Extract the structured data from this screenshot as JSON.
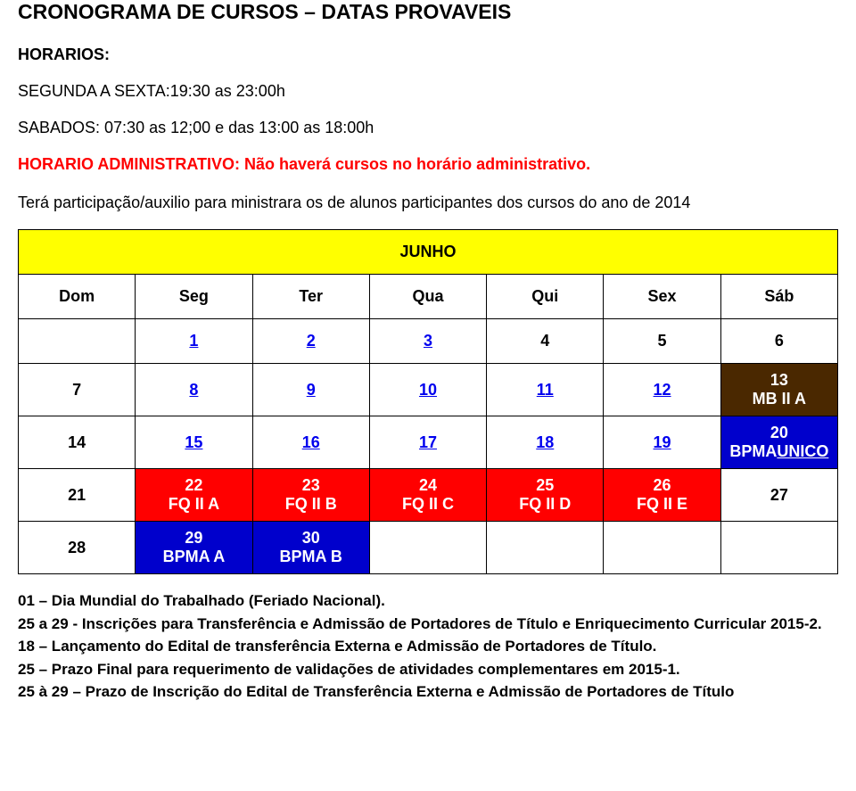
{
  "header": {
    "title": "CRONOGRAMA DE CURSOS – DATAS PROVAVEIS",
    "horarios_label": "HORARIOS:",
    "weekday_line": "SEGUNDA A SEXTA:19:30 as 23:00h",
    "saturday_line": "SABADOS: 07:30 as 12;00 e das 13:00 as 18:00h",
    "admin_line": "HORARIO ADMINISTRATIVO: Não haverá cursos no horário administrativo.",
    "extra_line": "Terá participação/auxilio para ministrara os de alunos participantes dos cursos do ano de 2014"
  },
  "calendar": {
    "month": "JUNHO",
    "weekdays": [
      "Dom",
      "Seg",
      "Ter",
      "Qua",
      "Qui",
      "Sex",
      "Sáb"
    ],
    "colors": {
      "month_bg": "#ffff00",
      "mb2a_bg": "#4a2800",
      "mb2a_fg": "#ffffff",
      "bpmaunico_bg": "#0000cc",
      "bpmaunico_fg": "#ffffff",
      "fq_bg": "#ff0000",
      "fq_fg": "#ffffff",
      "bpma_bg": "#0000cc",
      "bpma_fg": "#ffffff",
      "link_color": "#0000ee"
    },
    "row1": {
      "d1": "1",
      "d2": "2",
      "d3": "3",
      "d4": "4",
      "d5": "5",
      "d6": "6"
    },
    "row2": {
      "d7": "7",
      "d8": "8",
      "d9": "9",
      "d10": "10",
      "d11": "11",
      "d12": "12",
      "d13": "13",
      "d13_label": "MB II A"
    },
    "row3": {
      "d14": "14",
      "d15": "15",
      "d16": "16",
      "d17": "17",
      "d18": "18",
      "d19": "19",
      "d20": "20",
      "d20_prefix": "BPMA",
      "d20_u": "UNICO"
    },
    "row4": {
      "d21": "21",
      "d22": "22",
      "d22_label": "FQ II A",
      "d23": "23",
      "d23_label": "FQ II B",
      "d24": "24",
      "d24_label": "FQ II C",
      "d25": "25",
      "d25_label": "FQ II D",
      "d26": "26",
      "d26_label": "FQ II E",
      "d27": "27"
    },
    "row5": {
      "d28": "28",
      "d29": "29",
      "d29_label": "BPMA A",
      "d30": "30",
      "d30_label": "BPMA B"
    }
  },
  "notes": {
    "n1": "01 – Dia Mundial do Trabalhado (Feriado Nacional).",
    "n2": "25 a 29 - Inscrições para Transferência e Admissão de Portadores de Título e Enriquecimento Curricular 2015-2.",
    "n3": "18 – Lançamento do Edital de transferência Externa e Admissão de Portadores de Título.",
    "n4": "25 – Prazo Final para requerimento de validações de atividades complementares em 2015-1.",
    "n5": "25 à 29 – Prazo de Inscrição do Edital de Transferência Externa e Admissão de Portadores de Título"
  }
}
